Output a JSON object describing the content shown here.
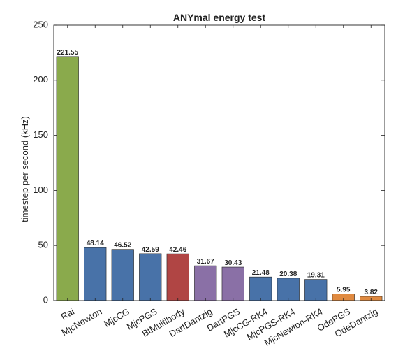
{
  "chart_data": {
    "type": "bar",
    "title": "ANYmal energy test",
    "xlabel": "",
    "ylabel": "timestep per second (kHz)",
    "ylim": [
      0,
      250
    ],
    "yticks": [
      0,
      50,
      100,
      150,
      200,
      250
    ],
    "grid": false,
    "categories": [
      "Rai",
      "MjcNewton",
      "MjcCG",
      "MjcPGS",
      "BtMultibody",
      "DartDantzig",
      "DartPGS",
      "MjcCG-RK4",
      "MjcPGS-RK4",
      "MjcNewton-RK4",
      "OdePGS",
      "OdeDantzig"
    ],
    "values": [
      221.55,
      48.14,
      46.52,
      42.59,
      42.46,
      31.67,
      30.43,
      21.48,
      20.38,
      19.31,
      5.95,
      3.82
    ],
    "data_labels": [
      "221.55",
      "48.14",
      "46.52",
      "42.59",
      "42.46",
      "31.67",
      "30.43",
      "21.48",
      "20.38",
      "19.31",
      "5.95",
      "3.82"
    ],
    "bar_colors": [
      "#8aaa4c",
      "#4872a8",
      "#4872a8",
      "#4872a8",
      "#b04544",
      "#8a70a6",
      "#8a70a6",
      "#4872a8",
      "#4872a8",
      "#4872a8",
      "#e08a40",
      "#e08a40"
    ]
  }
}
